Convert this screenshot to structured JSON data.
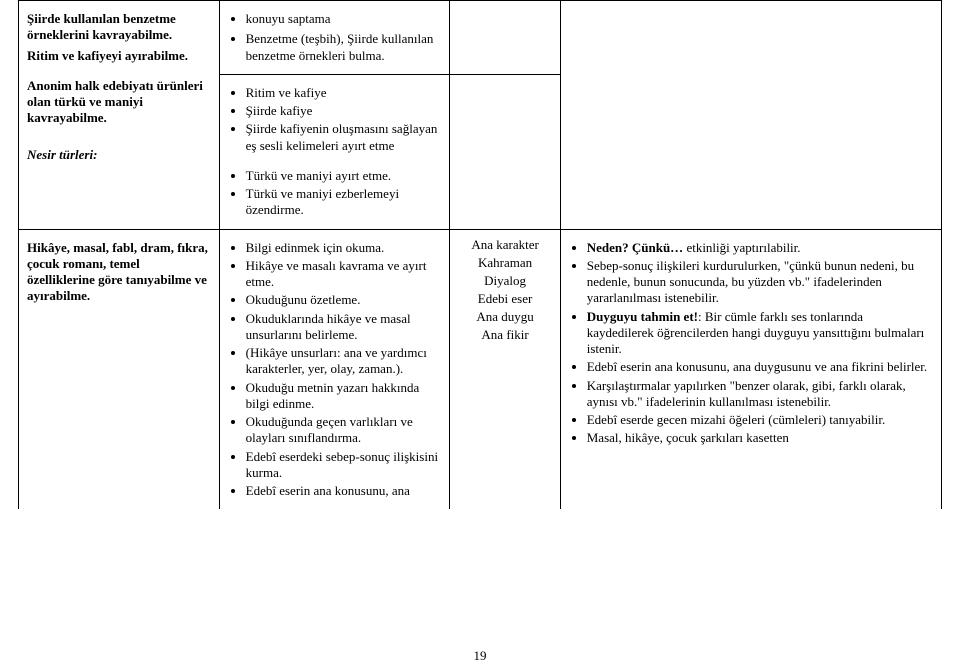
{
  "page_number": "19",
  "table": {
    "row1": {
      "c1": {
        "p1": "Şiirde kullanılan benzetme örneklerini kavrayabilme.",
        "p2": "Ritim ve kafiyeyi ayırabilme.",
        "p3": "Anonim halk edebiyatı ürünleri olan türkü ve maniyi kavrayabilme.",
        "p4": "Nesir türleri:"
      },
      "c2": {
        "li1": "konuyu saptama",
        "li2": "Benzetme (teşbih), Şiirde kullanılan benzetme örnekleri bulma.",
        "li3": "Ritim ve kafiye",
        "li4": "Şiirde kafiye",
        "li5": "Şiirde kafiyenin oluşmasını sağlayan eş sesli kelimeleri ayırt etme",
        "li6": "Türkü ve maniyi ayırt etme.",
        "li7": "Türkü ve maniyi ezberlemeyi özendirme."
      }
    },
    "row2": {
      "c1": {
        "p1": "Hikâye, masal, fabl, dram, fıkra, çocuk romanı, temel özelliklerine göre tanıyabilme ve ayırabilme."
      },
      "c2": {
        "li1": "Bilgi edinmek için okuma.",
        "li2": "Hikâye ve masalı kavrama ve ayırt etme.",
        "li3": "Okuduğunu özetleme.",
        "li4": "Okuduklarında hikâye ve masal unsurlarını belirleme.",
        "li5": "(Hikâye unsurları: ana ve yardımcı karakterler, yer, olay, zaman.).",
        "li6": "Okuduğu metnin yazarı hakkında bilgi edinme.",
        "li7": "Okuduğunda geçen varlıkları ve olayları sınıflandırma.",
        "li8": "Edebî eserdeki sebep-sonuç ilişkisini kurma.",
        "li9": "Edebî eserin ana konusunu, ana"
      },
      "c3": {
        "l1": "Ana karakter",
        "l2": "Kahraman",
        "l3": "Diyalog",
        "l4": "Edebi eser",
        "l5": "Ana duygu",
        "l6": "Ana fikir"
      },
      "c4": {
        "li1a": "Neden? Çünkü…",
        "li1b": " etkinliği yaptırılabilir.",
        "li2": "Sebep-sonuç ilişkileri kurdurulurken, \"çünkü bunun nedeni, bu nedenle, bunun sonucunda, bu yüzden vb.\" ifadelerinden yararlanılması istenebilir.",
        "li3a": "Duyguyu tahmin et!",
        "li3b": ": Bir cümle farklı ses tonlarında kaydedilerek öğrencilerden hangi duyguyu yansıttığını bulmaları istenir.",
        "li4": "Edebî eserin ana konusunu, ana duygusunu ve ana fikrini belirler.",
        "li5": "Karşılaştırmalar yapılırken \"benzer olarak, gibi, farklı olarak, aynısı vb.\" ifadelerinin kullanılması istenebilir.",
        "li6": "Edebî eserde gecen mizahi öğeleri (cümleleri) tanıyabilir.",
        "li7": "Masal, hikâye, çocuk şarkıları kasetten"
      }
    }
  }
}
